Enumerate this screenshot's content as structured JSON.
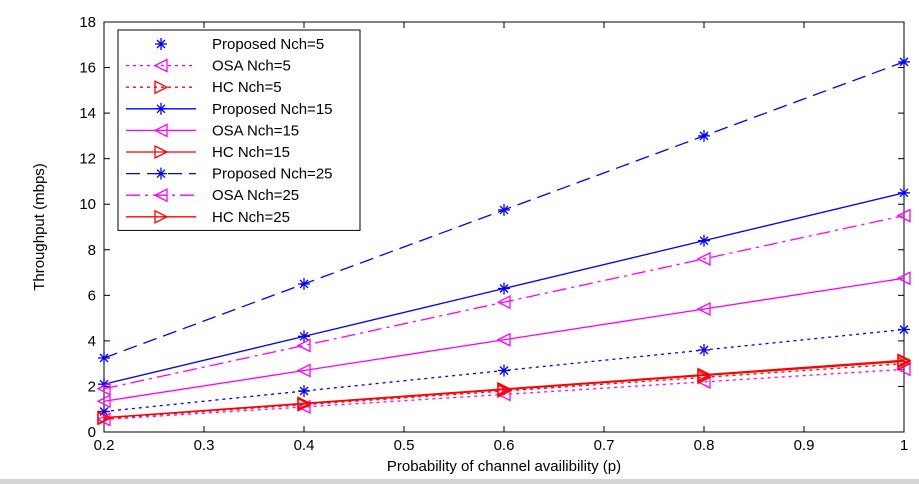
{
  "chart_data": {
    "type": "line",
    "title": "",
    "xlabel": "Probability of channel availibility (p)",
    "ylabel": "Throughput (mbps)",
    "xlim": [
      0.2,
      1.0
    ],
    "ylim": [
      0,
      18
    ],
    "xticks": [
      "0.2",
      "0.3",
      "0.4",
      "0.5",
      "0.6",
      "0.7",
      "0.8",
      "0.9",
      "1"
    ],
    "yticks": [
      "0",
      "2",
      "4",
      "6",
      "8",
      "10",
      "12",
      "14",
      "16",
      "18"
    ],
    "grid": false,
    "legend_position": "top-left",
    "x": [
      0.2,
      0.4,
      0.6,
      0.8,
      1.0
    ],
    "series": [
      {
        "name": "Proposed Nch=5",
        "color": "#0000ff",
        "dash": "dot",
        "marker": "star",
        "values": [
          0.9,
          1.8,
          2.7,
          3.6,
          4.5
        ]
      },
      {
        "name": "OSA Nch=5",
        "color": "#ff00ff",
        "dash": "dot",
        "marker": "triangle-left",
        "values": [
          0.55,
          1.1,
          1.65,
          2.2,
          2.75
        ]
      },
      {
        "name": "HC Nch=5",
        "color": "#ff0000",
        "dash": "dot",
        "marker": "triangle-right",
        "values": [
          0.6,
          1.2,
          1.8,
          2.4,
          3.0
        ]
      },
      {
        "name": "Proposed Nch=15",
        "color": "#0000ff",
        "dash": "solid",
        "marker": "star",
        "values": [
          2.1,
          4.2,
          6.3,
          8.4,
          10.5
        ]
      },
      {
        "name": "OSA Nch=15",
        "color": "#ff00ff",
        "dash": "solid",
        "marker": "triangle-left",
        "values": [
          1.35,
          2.7,
          4.05,
          5.4,
          6.75
        ]
      },
      {
        "name": "HC Nch=15",
        "color": "#ff0000",
        "dash": "solid",
        "marker": "triangle-right",
        "values": [
          0.62,
          1.24,
          1.86,
          2.48,
          3.1
        ]
      },
      {
        "name": "Proposed Nch=25",
        "color": "#0000ff",
        "dash": "dash",
        "marker": "star",
        "values": [
          3.25,
          6.5,
          9.75,
          13.0,
          16.25
        ]
      },
      {
        "name": "OSA Nch=25",
        "color": "#ff00ff",
        "dash": "dashdot",
        "marker": "triangle-left",
        "values": [
          1.9,
          3.8,
          5.7,
          7.6,
          9.5
        ]
      },
      {
        "name": "HC Nch=25",
        "color": "#ff0000",
        "dash": "solid",
        "marker": "triangle-right",
        "values": [
          0.63,
          1.26,
          1.89,
          2.52,
          3.15
        ]
      }
    ]
  }
}
